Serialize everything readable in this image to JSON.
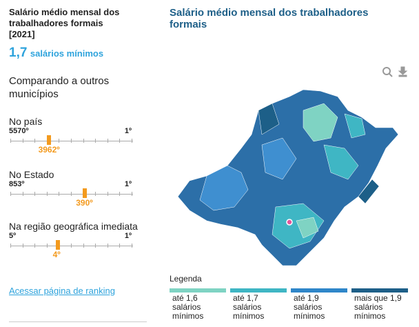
{
  "summary": {
    "title": "Salário médio mensal dos trabalhadores formais [2021]",
    "value": "1,7",
    "unit": "salários mínimos"
  },
  "comparison": {
    "title": "Comparando a outros municípios",
    "rankings": [
      {
        "label": "No país",
        "min": "5570º",
        "max": "1º",
        "position": "3962º"
      },
      {
        "label": "No Estado",
        "min": "853º",
        "max": "1º",
        "position": "390º"
      },
      {
        "label": "Na região geográfica imediata",
        "min": "5º",
        "max": "1º",
        "position": "4º"
      }
    ],
    "link": "Acessar página de ranking"
  },
  "map": {
    "title": "Salário médio mensal dos trabalhadores formais",
    "legend_title": "Legenda",
    "legend": [
      {
        "lines": [
          "até 1,6",
          "salários",
          "mínimos"
        ],
        "color": "#7fd3c3"
      },
      {
        "lines": [
          "até 1,7",
          "salários",
          "mínimos"
        ],
        "color": "#3fb6c4"
      },
      {
        "lines": [
          "até 1,9",
          "salários",
          "mínimos"
        ],
        "color": "#2f86c9"
      },
      {
        "lines": [
          "mais que 1,9",
          "salários",
          "mínimos"
        ],
        "color": "#1d5f88"
      }
    ]
  }
}
